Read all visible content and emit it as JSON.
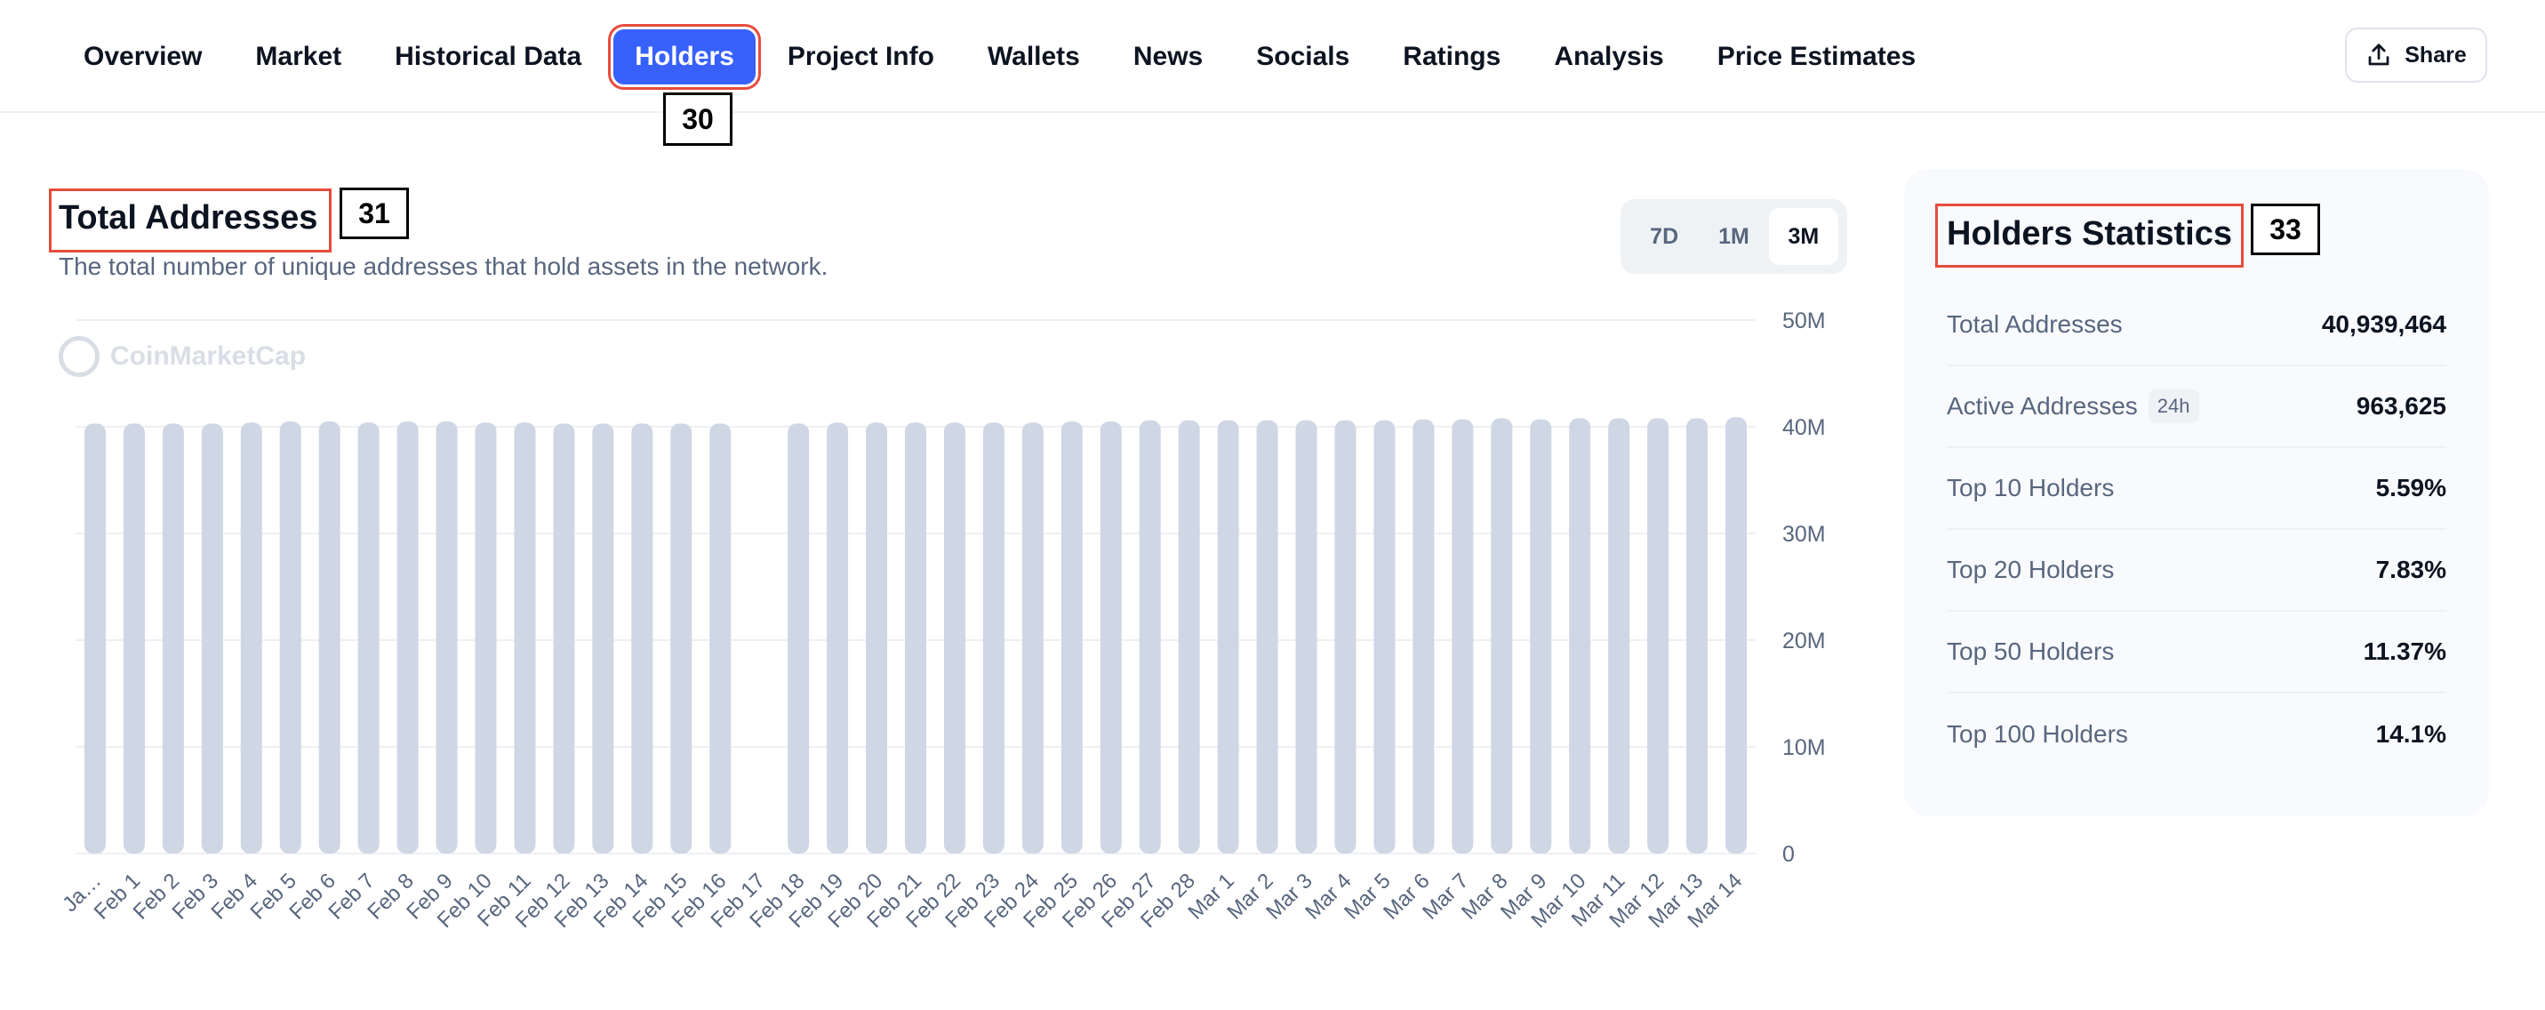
{
  "nav": {
    "tabs": [
      {
        "label": "Overview"
      },
      {
        "label": "Market"
      },
      {
        "label": "Historical Data"
      },
      {
        "label": "Holders",
        "active": true
      },
      {
        "label": "Project Info"
      },
      {
        "label": "Wallets"
      },
      {
        "label": "News"
      },
      {
        "label": "Socials"
      },
      {
        "label": "Ratings"
      },
      {
        "label": "Analysis"
      },
      {
        "label": "Price Estimates"
      }
    ],
    "share_label": "Share"
  },
  "badges": {
    "holders_tab": "30",
    "total_addresses": "31",
    "holders_stats": "33"
  },
  "chart_section": {
    "title": "Total Addresses",
    "subtitle": "The total number of unique addresses that hold assets in the network.",
    "ranges": [
      "7D",
      "1M",
      "3M"
    ],
    "active_range": "3M",
    "watermark": "CoinMarketCap"
  },
  "chart_data": {
    "type": "bar",
    "color": "#cfd6e4",
    "categories": [
      "Ja…",
      "Feb 1",
      "Feb 2",
      "Feb 3",
      "Feb 4",
      "Feb 5",
      "Feb 6",
      "Feb 7",
      "Feb 8",
      "Feb 9",
      "Feb 10",
      "Feb 11",
      "Feb 12",
      "Feb 13",
      "Feb 14",
      "Feb 15",
      "Feb 16",
      "Feb 17",
      "Feb 18",
      "Feb 19",
      "Feb 20",
      "Feb 21",
      "Feb 22",
      "Feb 23",
      "Feb 24",
      "Feb 25",
      "Feb 26",
      "Feb 27",
      "Feb 28",
      "Mar 1",
      "Mar 2",
      "Mar 3",
      "Mar 4",
      "Mar 5",
      "Mar 6",
      "Mar 7",
      "Mar 8",
      "Mar 9",
      "Mar 10",
      "Mar 11",
      "Mar 12",
      "Mar 13",
      "Mar 14"
    ],
    "values": [
      40.3,
      40.3,
      40.3,
      40.3,
      40.4,
      40.5,
      40.5,
      40.4,
      40.5,
      40.5,
      40.4,
      40.4,
      40.3,
      40.3,
      40.3,
      40.3,
      40.3,
      null,
      40.3,
      40.4,
      40.4,
      40.4,
      40.4,
      40.4,
      40.4,
      40.5,
      40.5,
      40.6,
      40.6,
      40.6,
      40.6,
      40.6,
      40.6,
      40.6,
      40.7,
      40.7,
      40.8,
      40.7,
      40.8,
      40.8,
      40.8,
      40.8,
      40.9
    ],
    "value_unit": "M",
    "yticks": [
      "0",
      "10M",
      "20M",
      "30M",
      "40M",
      "50M"
    ],
    "ylim": [
      0,
      50
    ],
    "grid": true,
    "y_axis_position": "right"
  },
  "holders_stats": {
    "title": "Holders Statistics",
    "rows": [
      {
        "label": "Total Addresses",
        "value": "40,939,464"
      },
      {
        "label": "Active Addresses",
        "tag": "24h",
        "value": "963,625"
      },
      {
        "label": "Top 10 Holders",
        "value": "5.59%"
      },
      {
        "label": "Top 20 Holders",
        "value": "7.83%"
      },
      {
        "label": "Top 50 Holders",
        "value": "11.37%"
      },
      {
        "label": "Top 100 Holders",
        "value": "14.1%"
      }
    ]
  }
}
